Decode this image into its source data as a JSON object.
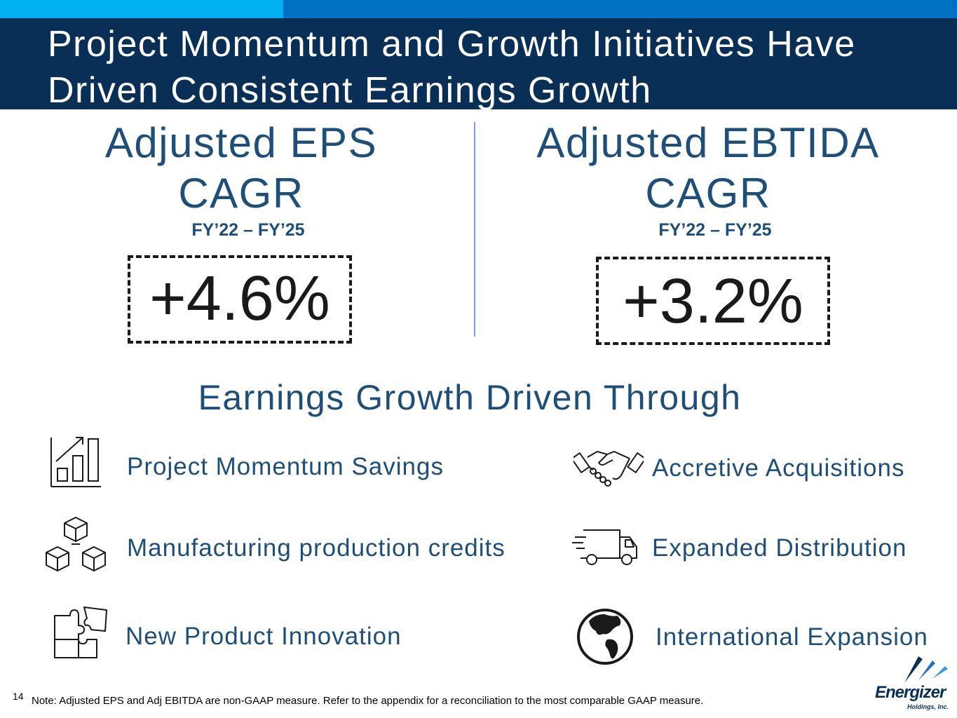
{
  "slide": {
    "title": "Project Momentum and Growth Initiatives Have Driven Consistent Earnings Growth",
    "page_number": "14",
    "footnote": "Note: Adjusted EPS and Adj EBITDA are non-GAAP measure. Refer to the appendix for a reconciliation to the most comparable GAAP measure."
  },
  "kpis": [
    {
      "title_line1": "Adjusted EPS",
      "title_line2": "CAGR",
      "period": "FY’22 – FY’25",
      "value": "+4.6%"
    },
    {
      "title_line1": "Adjusted EBTIDA",
      "title_line2": "CAGR",
      "period": "FY’22 – FY’25",
      "value": "+3.2%"
    }
  ],
  "drivers": {
    "heading": "Earnings Growth Driven Through",
    "items": [
      {
        "label": "Project Momentum Savings",
        "icon": "bar-chart-growth-icon"
      },
      {
        "label": "Accretive Acquisitions",
        "icon": "handshake-icon"
      },
      {
        "label": "Manufacturing production credits",
        "icon": "stacked-boxes-icon"
      },
      {
        "label": "Expanded Distribution",
        "icon": "delivery-truck-icon"
      },
      {
        "label": "New Product Innovation",
        "icon": "puzzle-pieces-icon"
      },
      {
        "label": "International Expansion",
        "icon": "globe-icon"
      }
    ]
  },
  "logo": {
    "wordmark": "Energizer",
    "subtext": "Holdings, Inc."
  },
  "colors": {
    "header_dark": "#0a2f57",
    "accent_light": "#00b0f0",
    "accent_mid": "#0070c0",
    "text_blue": "#1f4e79"
  }
}
